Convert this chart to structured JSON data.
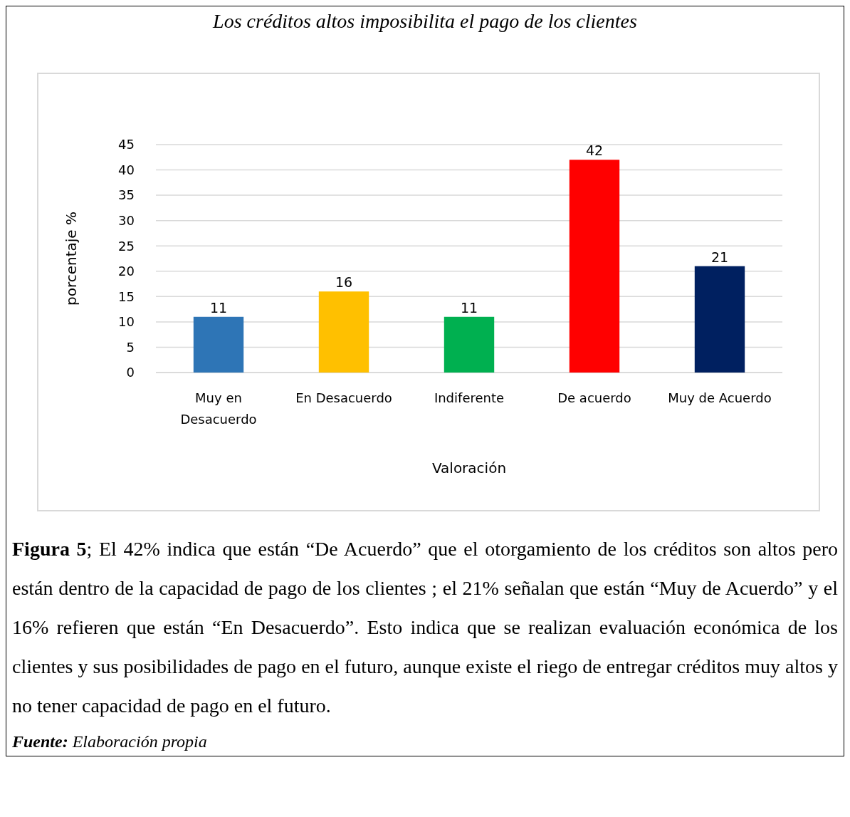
{
  "chart_data": {
    "type": "bar",
    "title": "Los créditos altos imposibilita el pago de los clientes",
    "categories": [
      "Muy en Desacuerdo",
      "En Desacuerdo",
      "Indiferente",
      "De acuerdo",
      "Muy de Acuerdo"
    ],
    "values": [
      11,
      16,
      11,
      42,
      21
    ],
    "colors": [
      "#2e75b6",
      "#ffc000",
      "#00b050",
      "#ff0000",
      "#002060"
    ],
    "ylim": [
      0,
      45
    ],
    "yticks": [
      0,
      5,
      10,
      15,
      20,
      25,
      30,
      35,
      40,
      45
    ],
    "grid": "y",
    "data_labels": true,
    "ylabel": "porcentaje %",
    "xlabel": "Valoración",
    "annotations": [
      "Figura 5",
      "; El 42% indica que están “De Acuerdo” que el otorgamiento de los créditos son altos pero están dentro de la capacidad de pago de los clientes ; el 21% señalan que están “Muy de Acuerdo” y el 16% refieren que están “En Desacuerdo”. Esto indica que se realizan evaluación económica de los clientes y sus posibilidades de pago en el futuro, aunque existe el riego de entregar créditos muy altos y no tener capacidad de pago en el futuro.",
      "Fuente:",
      " Elaboración propia"
    ]
  }
}
